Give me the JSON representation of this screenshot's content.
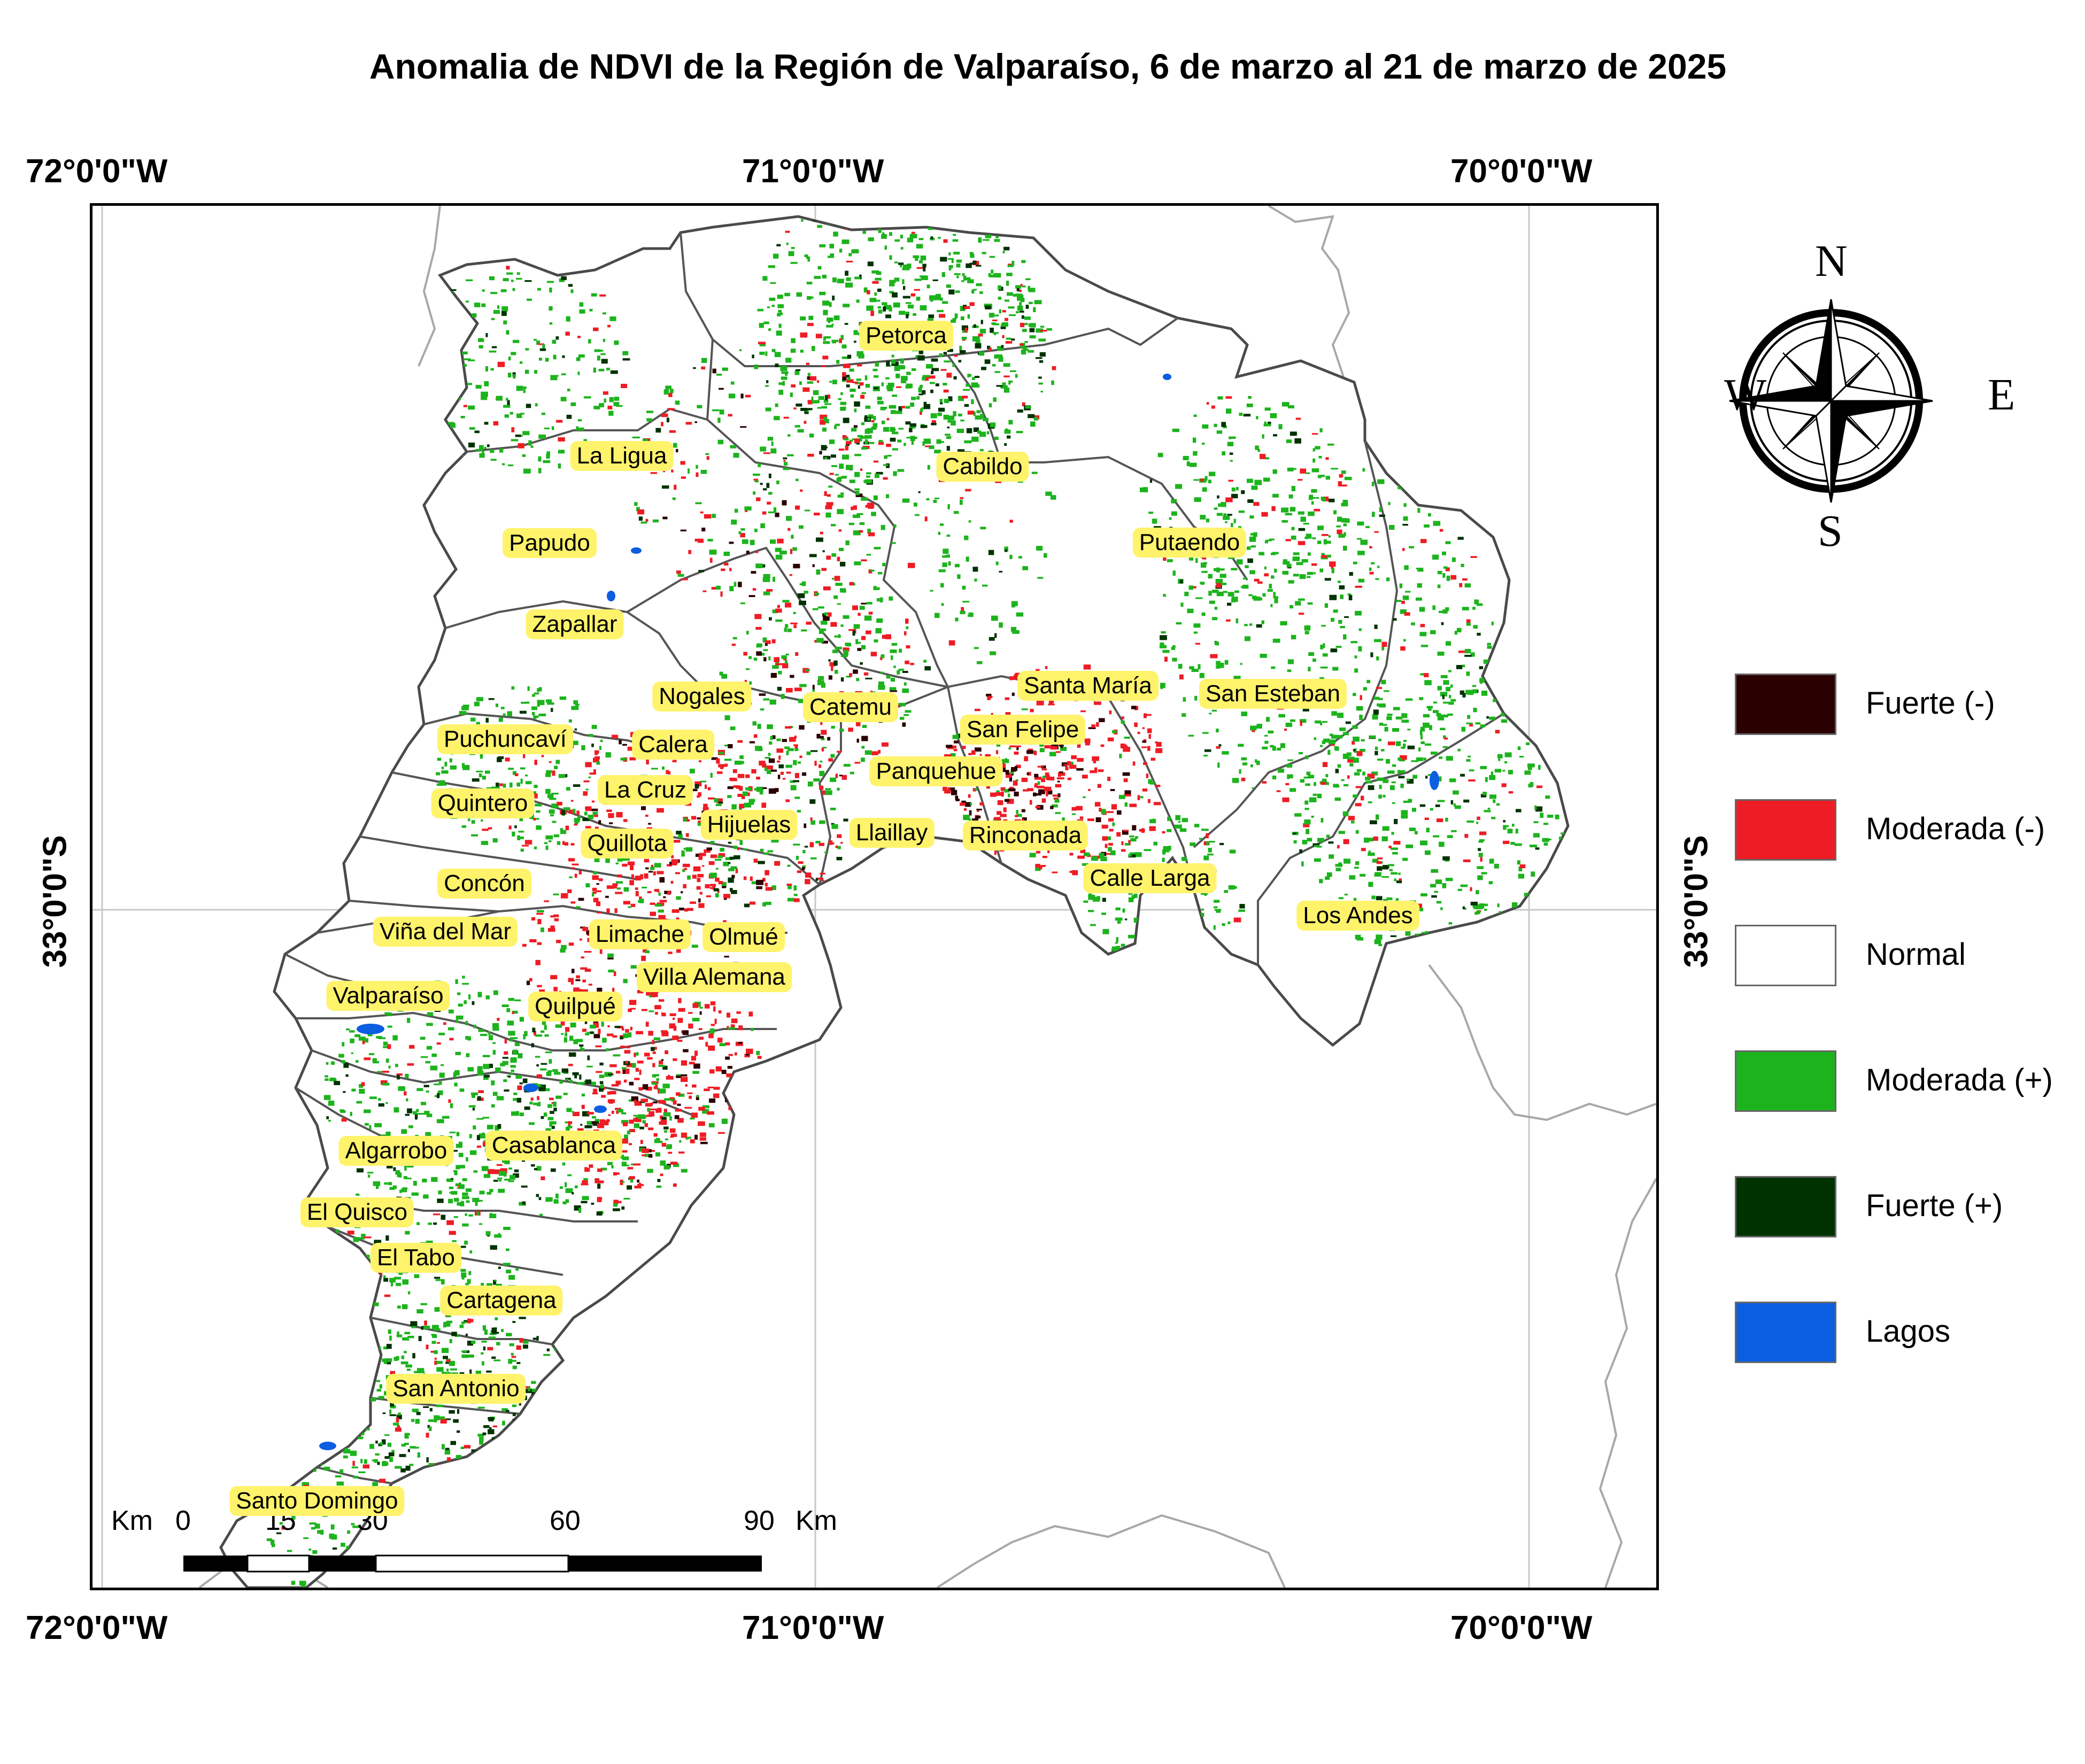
{
  "title": "Anomalia de NDVI de la Región de Valparaíso, 6 de marzo al 21 de marzo de 2025",
  "coords": {
    "lon_west": "72°0'0\"W",
    "lon_mid": "71°0'0\"W",
    "lon_east": "70°0'0\"W",
    "lat": "33°0'0\"S"
  },
  "compass": {
    "n": "N",
    "s": "S",
    "e": "E",
    "w": "W",
    "icon": "compass-rose-icon"
  },
  "legend": [
    {
      "label": "Fuerte (-)",
      "color": "#2b0000"
    },
    {
      "label": "Moderada (-)",
      "color": "#ee1c24"
    },
    {
      "label": "Normal",
      "color": "#ffffff"
    },
    {
      "label": "Moderada (+)",
      "color": "#1db31d"
    },
    {
      "label": "Fuerte (+)",
      "color": "#003200"
    },
    {
      "label": "Lagos",
      "color": "#0b5ee0"
    }
  ],
  "scale": {
    "unit_left": "Km",
    "unit_right": "Km",
    "ticks": [
      "0",
      "15",
      "30",
      "60",
      "90"
    ]
  },
  "places": [
    "Petorca",
    "Cabildo",
    "La Ligua",
    "Papudo",
    "Putaendo",
    "Zapallar",
    "Nogales",
    "Catemu",
    "Santa María",
    "San Esteban",
    "San Felipe",
    "Puchuncaví",
    "Calera",
    "Panquehue",
    "La Cruz",
    "Quintero",
    "Hijuelas",
    "Llaillay",
    "Rinconada",
    "Quillota",
    "Calle Larga",
    "Concón",
    "Los Andes",
    "Viña del Mar",
    "Limache",
    "Olmué",
    "Villa Alemana",
    "Valparaíso",
    "Quilpué",
    "Casablanca",
    "Algarrobo",
    "El Quisco",
    "El Tabo",
    "Cartagena",
    "San Antonio",
    "Santo Domingo"
  ]
}
